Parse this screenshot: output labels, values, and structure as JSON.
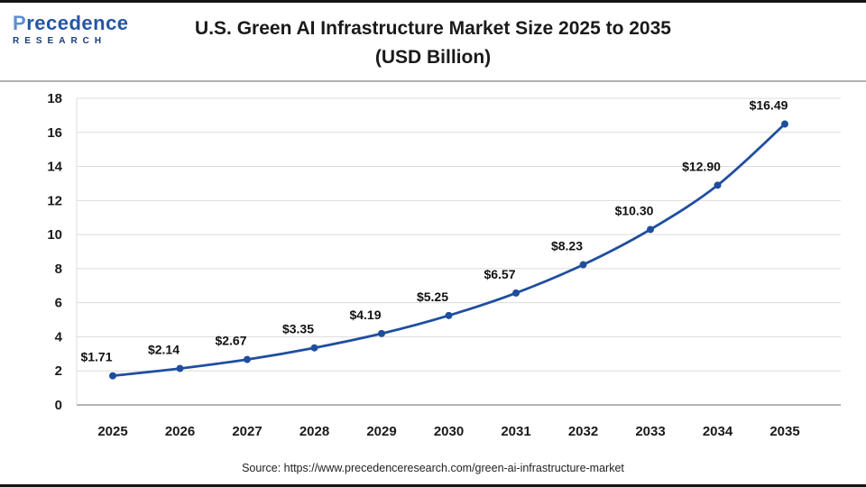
{
  "header": {
    "logo_line1": "Precedence",
    "logo_line2": "RESEARCH",
    "title_line1": "U.S. Green AI Infrastructure Market Size 2025 to 2035",
    "title_line2": "(USD Billion)"
  },
  "chart_data": {
    "type": "line",
    "title": "U.S. Green AI Infrastructure Market Size 2025 to 2035 (USD Billion)",
    "categories": [
      "2025",
      "2026",
      "2027",
      "2028",
      "2029",
      "2030",
      "2031",
      "2032",
      "2033",
      "2034",
      "2035"
    ],
    "values": [
      1.71,
      2.14,
      2.67,
      3.35,
      4.19,
      5.25,
      6.57,
      8.23,
      10.3,
      12.9,
      16.49
    ],
    "labels": [
      "$1.71",
      "$2.14",
      "$2.67",
      "$3.35",
      "$4.19",
      "$5.25",
      "$6.57",
      "$8.23",
      "$10.30",
      "$12.90",
      "$16.49"
    ],
    "xlabel": "",
    "ylabel": "",
    "ylim": [
      0,
      18
    ],
    "ytick_step": 2,
    "grid": true,
    "legend": "none",
    "line_color": "#1f4e9f",
    "grid_color": "#dcdcdc",
    "axis_color": "#9b9b9b",
    "label_color": "#111111"
  },
  "footer": {
    "source": "Source: https://www.precedenceresearch.com/green-ai-infrastructure-market"
  }
}
